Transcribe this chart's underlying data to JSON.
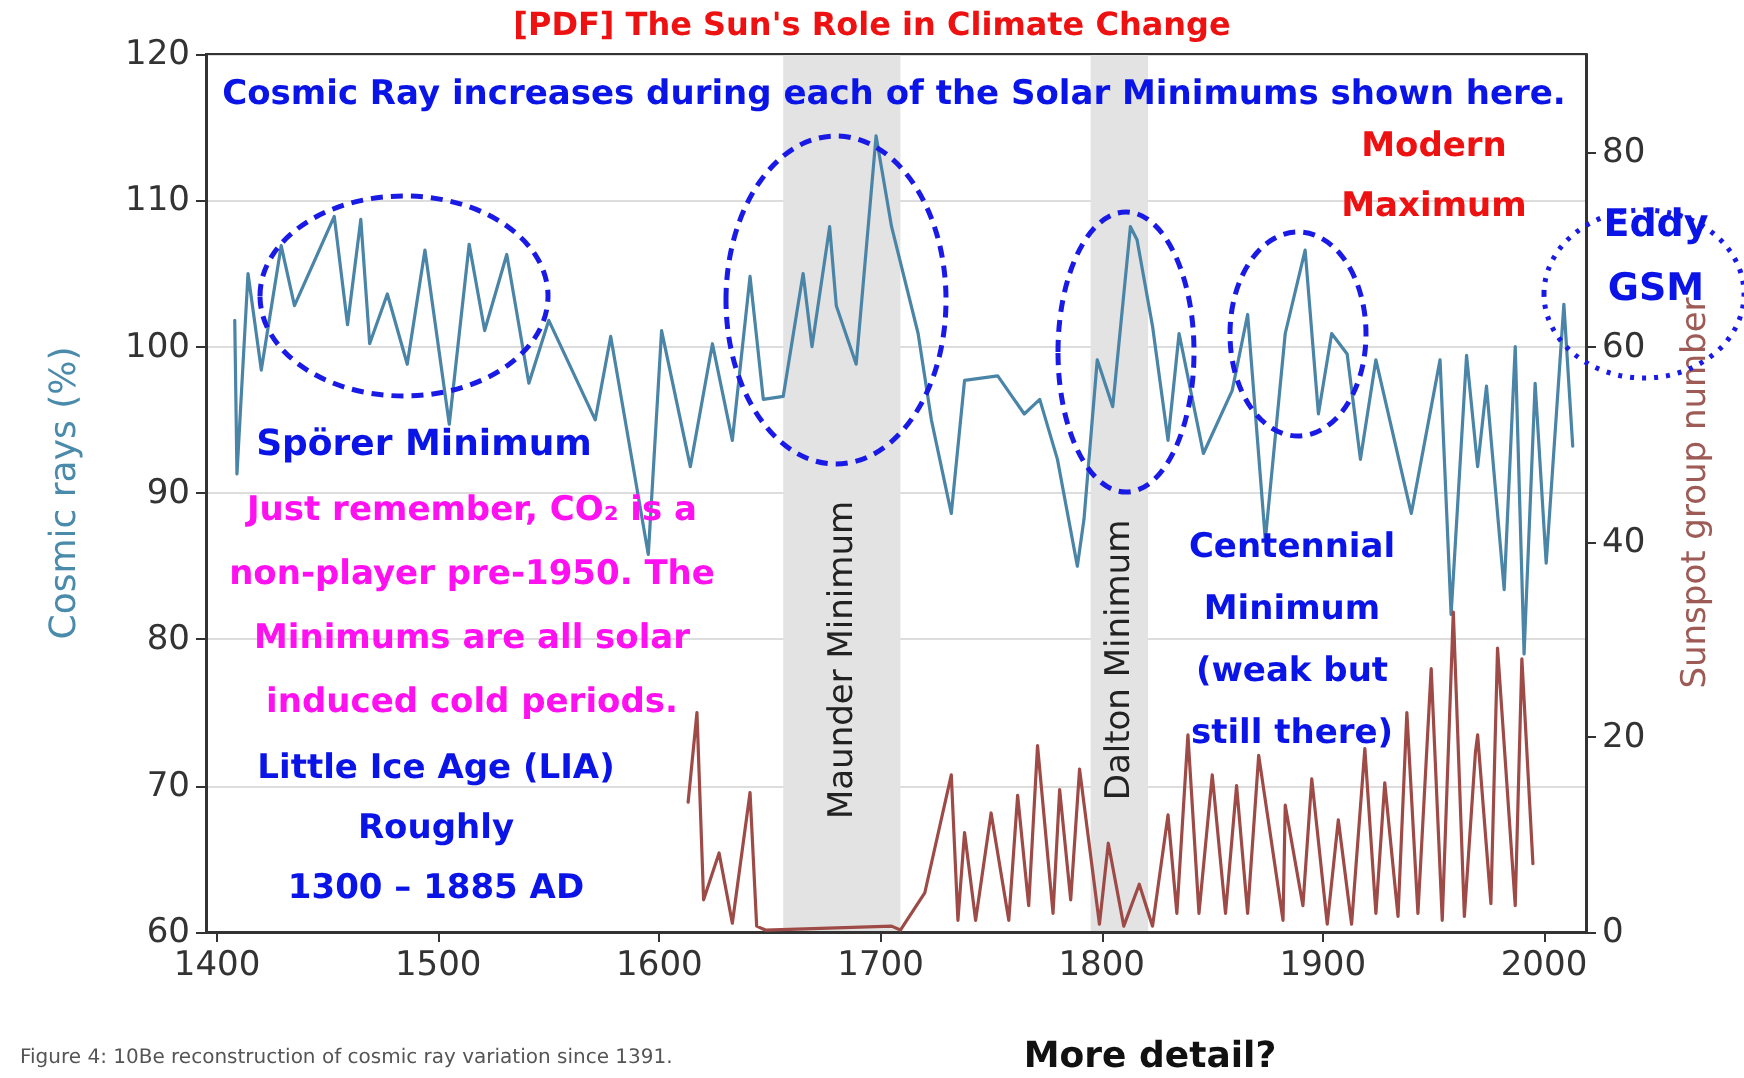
{
  "chart_data": {
    "type": "line",
    "title": "[PDF] The Sun's Role in Climate Change",
    "ylabel": "Cosmic rays (%)",
    "y2label": "Sunspot group number",
    "xlim": [
      1395,
      2019
    ],
    "xticks": [
      1400,
      1500,
      1600,
      1700,
      1800,
      1900,
      2000
    ],
    "ylim": [
      60,
      120
    ],
    "yticks": [
      60,
      70,
      80,
      90,
      100,
      110,
      120
    ],
    "y2lim": [
      0,
      90
    ],
    "y2ticks": [
      0,
      20,
      40,
      60,
      80
    ],
    "grid": "y",
    "marker": "none",
    "line_style": "solid",
    "series": [
      {
        "color": "#4a84a6",
        "x": [
          1408,
          1409,
          1414,
          1420,
          1429,
          1435,
          1453,
          1459,
          1465,
          1469,
          1477,
          1486,
          1494,
          1505,
          1514,
          1521,
          1531,
          1541,
          1550,
          1571,
          1578,
          1595,
          1601,
          1614,
          1624,
          1633,
          1641,
          1647,
          1656,
          1665,
          1669,
          1677,
          1680,
          1689,
          1698,
          1705,
          1717,
          1723,
          1732,
          1738,
          1753,
          1765,
          1772,
          1780,
          1789,
          1792,
          1798,
          1805,
          1813,
          1816,
          1823,
          1830,
          1835,
          1846,
          1859,
          1866,
          1874,
          1883,
          1892,
          1898,
          1904,
          1911,
          1917,
          1924,
          1940,
          1953,
          1958,
          1965,
          1970,
          1974,
          1982,
          1987,
          1991,
          1996,
          2001,
          2009,
          2013
        ],
        "values": [
          101.8,
          91.3,
          105,
          98.4,
          106.9,
          102.8,
          108.9,
          101.5,
          108.7,
          100.2,
          103.6,
          98.8,
          106.6,
          94.7,
          107,
          101.1,
          106.3,
          97.5,
          101.8,
          95,
          100.7,
          85.8,
          101.1,
          91.8,
          100.2,
          93.6,
          104.8,
          96.4,
          96.6,
          105,
          100,
          108.2,
          102.8,
          98.8,
          114.4,
          108.2,
          100.9,
          95,
          88.6,
          97.7,
          98,
          95.4,
          96.4,
          92.3,
          85,
          88.2,
          99.1,
          95.9,
          108.2,
          107.3,
          101.4,
          93.6,
          100.9,
          92.7,
          97,
          102.2,
          86.8,
          100.9,
          106.6,
          95.4,
          100.9,
          99.5,
          92.3,
          99.1,
          88.6,
          99.1,
          81.7,
          99.4,
          91.8,
          97.3,
          83.4,
          100,
          79,
          97.5,
          85.2,
          102.9,
          93.2
        ]
      },
      {
        "color": "#9e4b48",
        "axis": "y2",
        "x": [
          1613,
          1617,
          1620,
          1627,
          1633,
          1641,
          1644,
          1648,
          1705,
          1709,
          1720,
          1732,
          1735,
          1738,
          1743,
          1750,
          1758,
          1762,
          1767,
          1771,
          1778,
          1781,
          1786,
          1790,
          1799,
          1803,
          1810,
          1817,
          1823,
          1830,
          1834,
          1839,
          1844,
          1850,
          1856,
          1861,
          1866,
          1871,
          1882,
          1883,
          1891,
          1895,
          1902,
          1907,
          1913,
          1919,
          1924,
          1928,
          1934,
          1938,
          1943,
          1949,
          1954,
          1959,
          1964,
          1969,
          1970,
          1976,
          1979,
          1987,
          1990,
          1995
        ],
        "values": [
          13.3,
          22.5,
          3.3,
          8.1,
          0.9,
          14.3,
          0.6,
          0.2,
          0.6,
          0.2,
          4,
          16.1,
          1.2,
          10.2,
          1.2,
          12.2,
          1.2,
          14,
          2.7,
          19.1,
          1.9,
          14.6,
          3.3,
          16.7,
          0.8,
          9.1,
          0.6,
          4.9,
          0.6,
          12,
          1.9,
          20.2,
          1.9,
          16.1,
          1.9,
          15,
          1.9,
          18.1,
          1.2,
          13,
          2.7,
          15.7,
          0.8,
          11.5,
          0.8,
          18.8,
          1.9,
          15.3,
          1.6,
          22.5,
          1.9,
          27,
          1.2,
          32.8,
          1.6,
          18.4,
          20.2,
          2.9,
          29.1,
          2.7,
          28,
          7
        ]
      }
    ],
    "bands": [
      {
        "axis": "x",
        "from": 1656,
        "to": 1709,
        "label": "Maunder Minimum",
        "color": "#e3e3e3"
      },
      {
        "axis": "x",
        "from": 1795,
        "to": 1821,
        "label": "Dalton Minimum",
        "color": "#e3e3e3"
      }
    ],
    "annotations": [
      "Cosmic Ray increases during each of the Solar Minimums shown here.",
      "Modern\nMaximum",
      "Eddy\nGSM",
      "Spörer Minimum",
      "Just remember, CO₂ is a\nnon-player pre-1950. The\nMinimums are all solar\ninduced cold periods.",
      "Little Ice Age (LIA)\nRoughly\n1300 – 1885 AD",
      "Centennial\nMinimum\n(weak but\nstill there)",
      "Figure 4: 10Be reconstruction of cosmic ray variation since 1391.",
      "More detail?"
    ]
  }
}
